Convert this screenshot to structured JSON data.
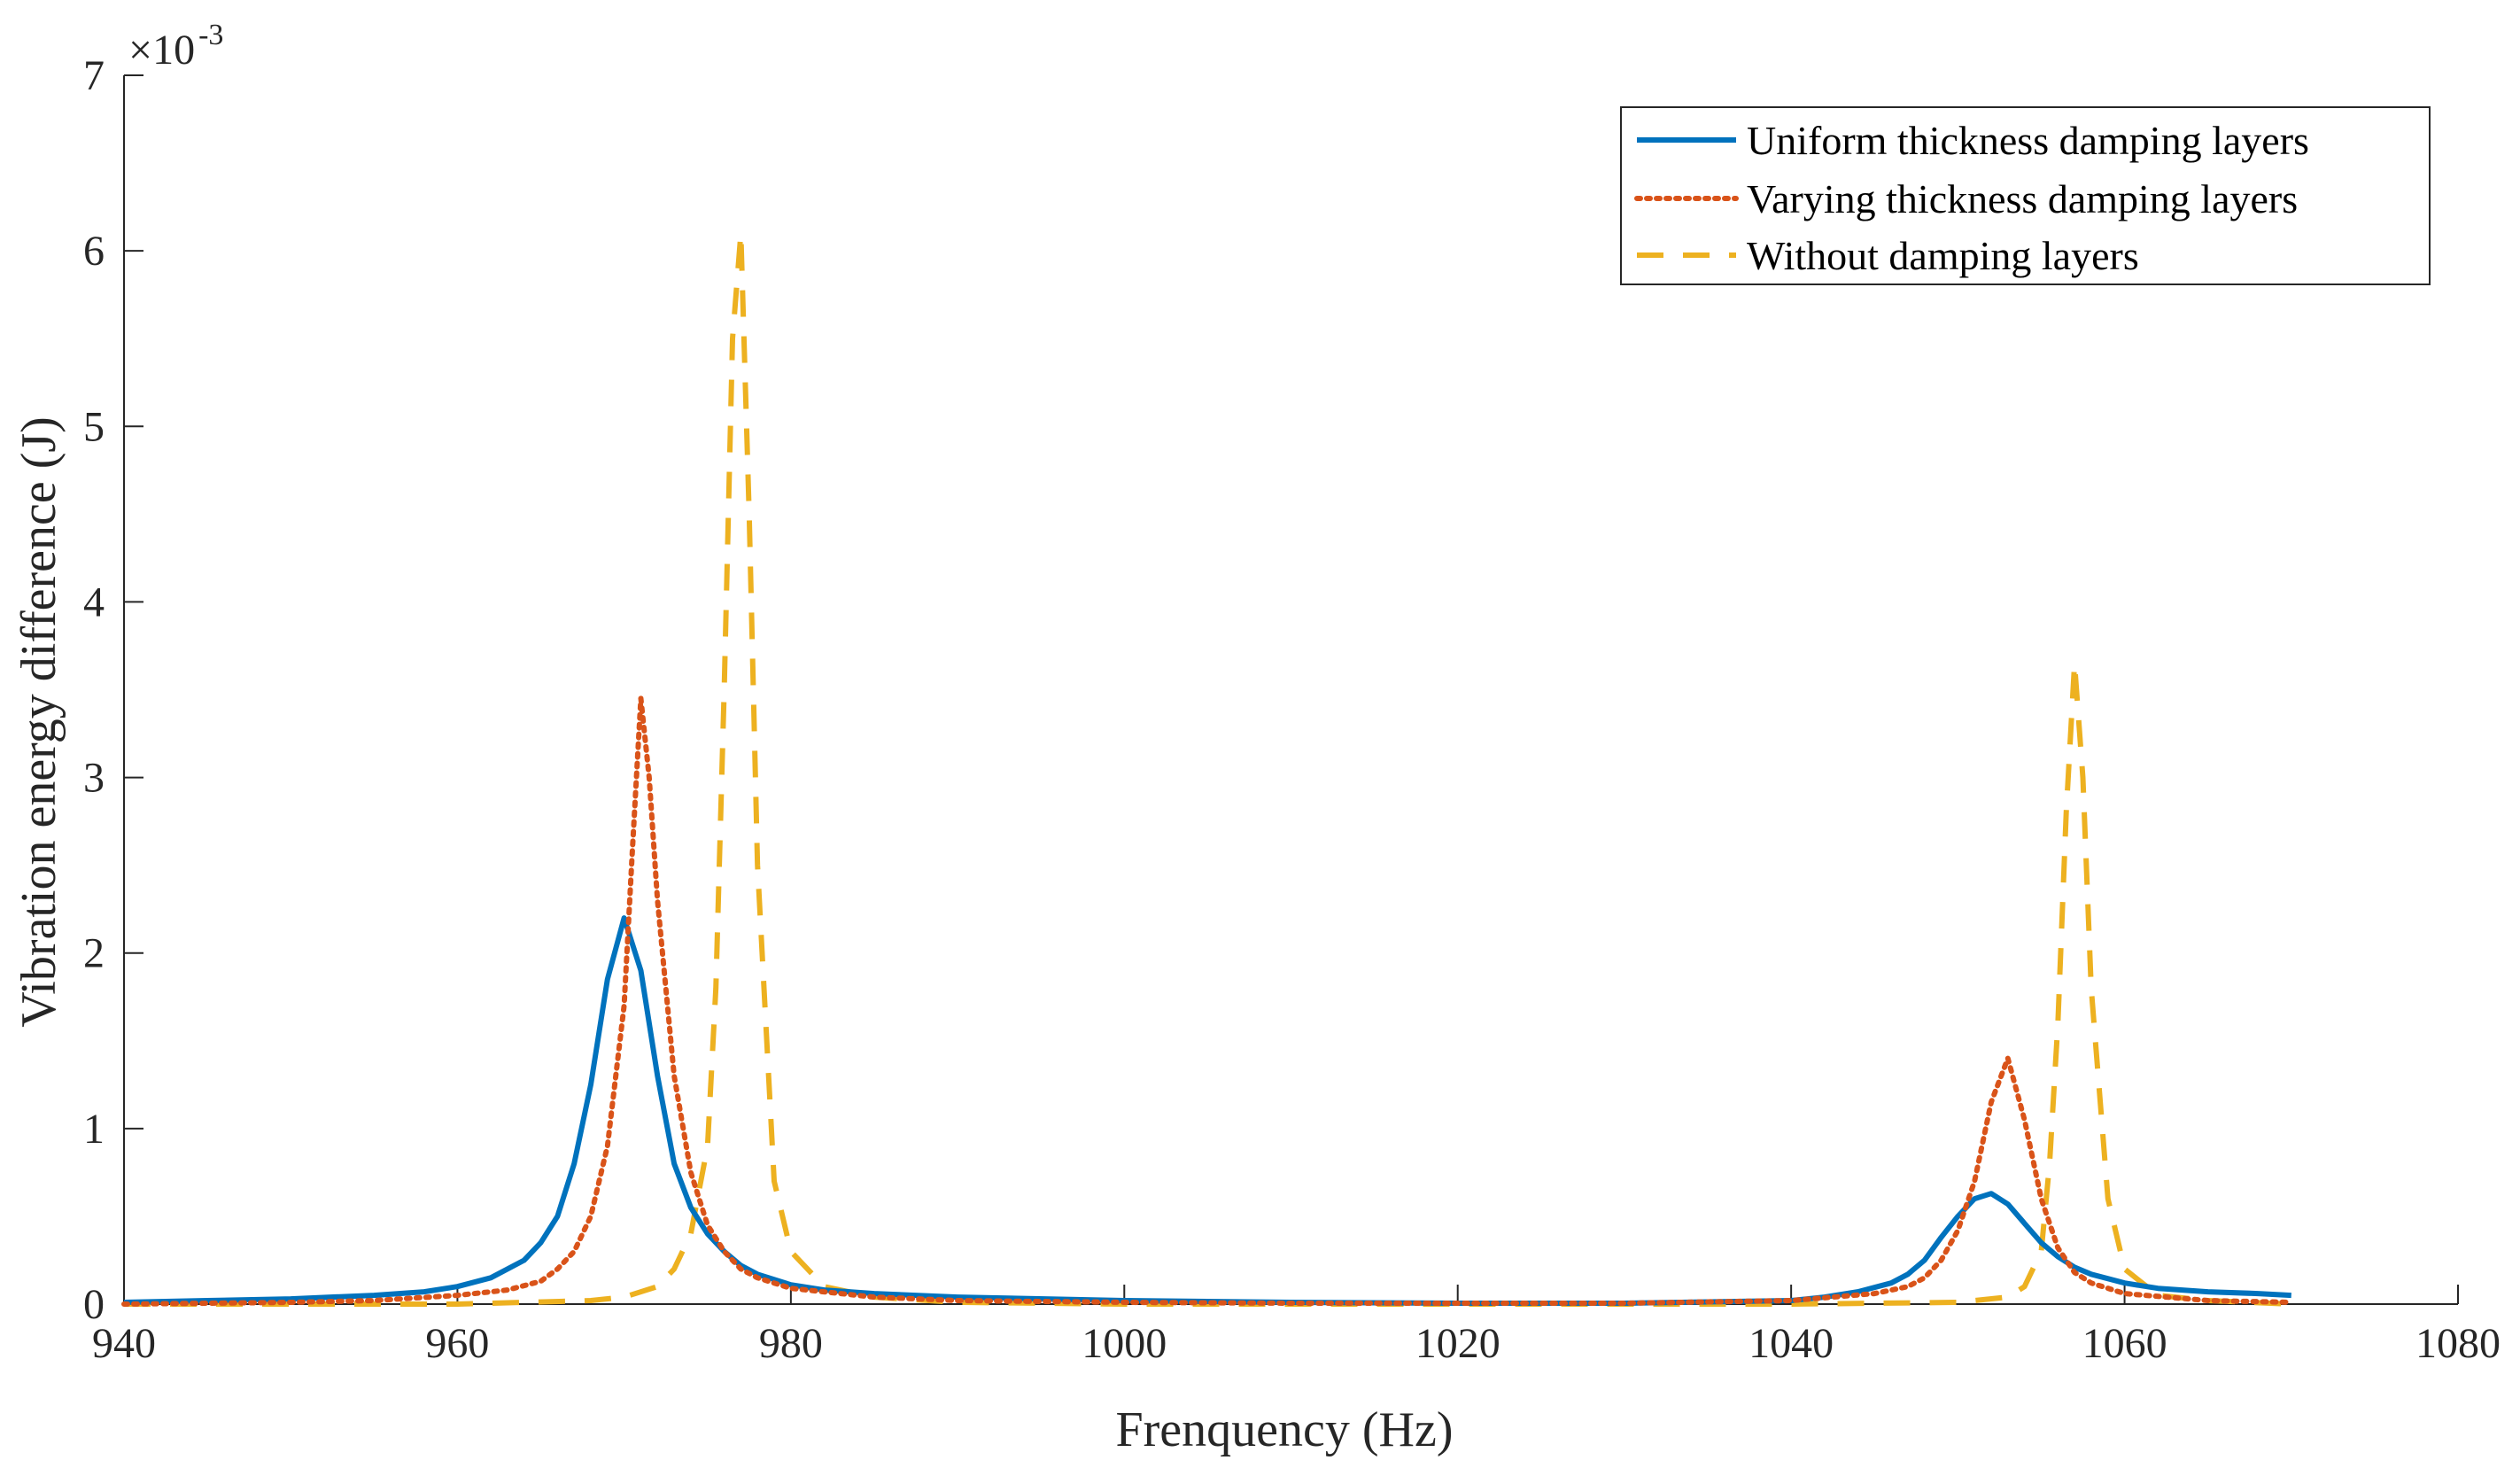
{
  "chart_data": {
    "type": "line",
    "title": "",
    "xlabel": "Frenquency (Hz)",
    "ylabel": "Vibration energy difference (J)",
    "xlim": [
      940,
      1080
    ],
    "ylim": [
      0,
      7
    ],
    "y_multiplier_base": "×10",
    "y_multiplier_exp": "-3",
    "xticks": [
      940,
      960,
      980,
      1000,
      1020,
      1040,
      1060,
      1080
    ],
    "xtick_labels": [
      "940",
      "960",
      "980",
      "1000",
      "1020",
      "1040",
      "1060",
      "1080"
    ],
    "yticks": [
      0,
      1,
      2,
      3,
      4,
      5,
      6,
      7
    ],
    "ytick_labels": [
      "0",
      "1",
      "2",
      "3",
      "4",
      "5",
      "6",
      "7"
    ],
    "grid": false,
    "legend_position": "top-right",
    "series": [
      {
        "name": "Uniform thickness damping layers",
        "color": "#0072BD",
        "style": "solid",
        "x": [
          940,
          945,
          950,
          955,
          958,
          960,
          962,
          964,
          965,
          966,
          967,
          968,
          969,
          970,
          971,
          972,
          973,
          974,
          975,
          976,
          977,
          978,
          980,
          982,
          985,
          990,
          1000,
          1010,
          1020,
          1030,
          1040,
          1042,
          1044,
          1046,
          1047,
          1048,
          1049,
          1050,
          1051,
          1052,
          1053,
          1054,
          1055,
          1056,
          1057,
          1058,
          1060,
          1062,
          1065,
          1068,
          1070
        ],
        "y": [
          0.01,
          0.02,
          0.03,
          0.05,
          0.07,
          0.1,
          0.15,
          0.25,
          0.35,
          0.5,
          0.8,
          1.25,
          1.85,
          2.2,
          1.9,
          1.3,
          0.8,
          0.55,
          0.4,
          0.3,
          0.22,
          0.17,
          0.11,
          0.08,
          0.06,
          0.04,
          0.02,
          0.01,
          0.005,
          0.005,
          0.02,
          0.04,
          0.07,
          0.12,
          0.17,
          0.25,
          0.38,
          0.5,
          0.6,
          0.63,
          0.57,
          0.46,
          0.35,
          0.27,
          0.21,
          0.17,
          0.12,
          0.09,
          0.07,
          0.06,
          0.05
        ]
      },
      {
        "name": "Varying thickness damping layers",
        "color": "#D95319",
        "style": "dotted",
        "x": [
          940,
          950,
          955,
          960,
          963,
          965,
          966,
          967,
          968,
          969,
          970,
          970.5,
          971,
          971.5,
          972,
          973,
          974,
          975,
          976,
          977,
          978,
          980,
          985,
          990,
          1000,
          1010,
          1020,
          1030,
          1040,
          1045,
          1047,
          1048,
          1049,
          1050,
          1051,
          1052,
          1053,
          1054,
          1055,
          1056,
          1057,
          1058,
          1060,
          1065,
          1070
        ],
        "y": [
          0.0,
          0.01,
          0.02,
          0.05,
          0.08,
          0.13,
          0.2,
          0.3,
          0.5,
          0.9,
          1.7,
          2.6,
          3.45,
          3.0,
          2.3,
          1.3,
          0.75,
          0.45,
          0.3,
          0.2,
          0.15,
          0.09,
          0.04,
          0.02,
          0.01,
          0.005,
          0.005,
          0.005,
          0.02,
          0.06,
          0.1,
          0.15,
          0.25,
          0.42,
          0.7,
          1.15,
          1.4,
          1.05,
          0.6,
          0.32,
          0.18,
          0.12,
          0.06,
          0.02,
          0.01
        ]
      },
      {
        "name": "Without damping layers",
        "color": "#EDB120",
        "style": "dashed",
        "x": [
          940,
          960,
          968,
          970,
          972,
          973,
          974,
          975,
          975.5,
          976,
          976.5,
          977,
          977.5,
          978,
          979,
          980,
          982,
          985,
          990,
          1000,
          1020,
          1040,
          1050,
          1053,
          1054,
          1055,
          1055.5,
          1056,
          1056.5,
          1057,
          1057.5,
          1058,
          1059,
          1060,
          1062,
          1065,
          1070
        ],
        "y": [
          0.0,
          0.0,
          0.02,
          0.04,
          0.1,
          0.2,
          0.4,
          0.9,
          1.8,
          3.5,
          5.5,
          6.1,
          4.5,
          2.5,
          0.7,
          0.3,
          0.1,
          0.04,
          0.01,
          0.0,
          0.0,
          0.0,
          0.01,
          0.04,
          0.1,
          0.3,
          0.8,
          1.6,
          2.8,
          3.65,
          3.0,
          1.8,
          0.6,
          0.2,
          0.05,
          0.02,
          0.0
        ]
      }
    ]
  }
}
